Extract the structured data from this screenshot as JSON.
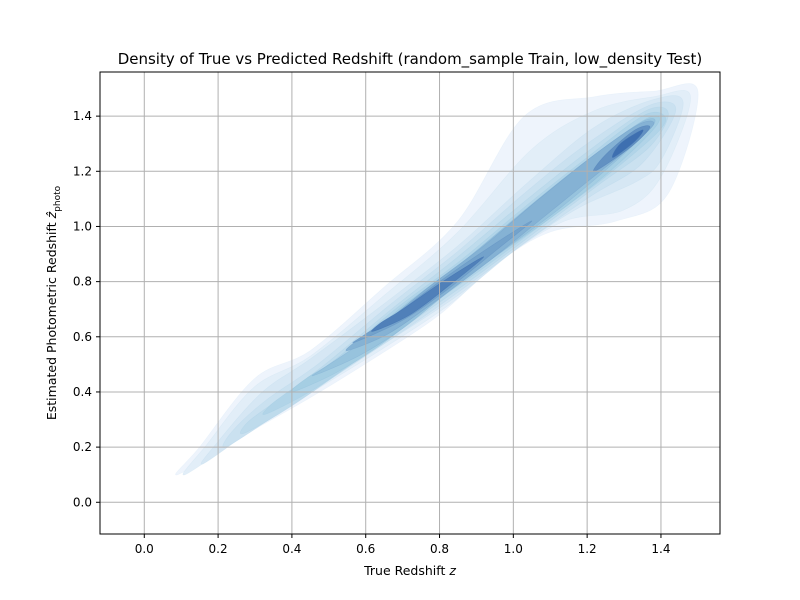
{
  "chart_data": {
    "type": "kde_density_contour",
    "title": "Density of True vs Predicted Redshift (random_sample Train, low_density Test)",
    "xlabel": {
      "text": "True Redshift ",
      "math": "z"
    },
    "ylabel": {
      "text": "Estimated Photometric Redshift ",
      "math": "ẑ",
      "subscript": "photo"
    },
    "xlim": [
      -0.12,
      1.56
    ],
    "ylim": [
      -0.115,
      1.56
    ],
    "x_ticks": [
      0.0,
      0.2,
      0.4,
      0.6,
      0.8,
      1.0,
      1.2,
      1.4
    ],
    "x_tick_labels": [
      "0.0",
      "0.2",
      "0.4",
      "0.6",
      "0.8",
      "1.0",
      "1.2",
      "1.4"
    ],
    "y_ticks": [
      0.0,
      0.2,
      0.4,
      0.6,
      0.8,
      1.0,
      1.2,
      1.4
    ],
    "y_tick_labels": [
      "0.0",
      "0.2",
      "0.4",
      "0.6",
      "0.8",
      "1.0",
      "1.2",
      "1.4"
    ],
    "grid": true,
    "colormap": "Blues",
    "colors": {
      "low": "#eef4fc",
      "mid": "#9ecae1",
      "high": "#3e6fb0"
    },
    "contour_levels": [
      {
        "points": [
          [
            0.09,
            0.1
          ],
          [
            0.28,
            0.25
          ],
          [
            0.45,
            0.38
          ],
          [
            0.62,
            0.52
          ],
          [
            0.8,
            0.68
          ],
          [
            0.95,
            0.86
          ],
          [
            1.1,
            0.98
          ],
          [
            1.28,
            1.02
          ],
          [
            1.42,
            1.12
          ],
          [
            1.5,
            1.49
          ],
          [
            1.38,
            1.49
          ],
          [
            1.22,
            1.47
          ],
          [
            1.03,
            1.4
          ],
          [
            0.85,
            1.02
          ],
          [
            0.65,
            0.78
          ],
          [
            0.45,
            0.55
          ],
          [
            0.3,
            0.45
          ],
          [
            0.15,
            0.2
          ]
        ]
      },
      {
        "points": [
          [
            0.11,
            0.1
          ],
          [
            0.3,
            0.27
          ],
          [
            0.48,
            0.42
          ],
          [
            0.65,
            0.56
          ],
          [
            0.83,
            0.72
          ],
          [
            0.98,
            0.89
          ],
          [
            1.14,
            1.02
          ],
          [
            1.3,
            1.06
          ],
          [
            1.4,
            1.18
          ],
          [
            1.48,
            1.47
          ],
          [
            1.38,
            1.47
          ],
          [
            1.22,
            1.42
          ],
          [
            1.05,
            1.28
          ],
          [
            0.85,
            0.98
          ],
          [
            0.65,
            0.75
          ],
          [
            0.45,
            0.53
          ],
          [
            0.3,
            0.42
          ],
          [
            0.17,
            0.21
          ]
        ]
      },
      {
        "points": [
          [
            0.16,
            0.14
          ],
          [
            0.32,
            0.29
          ],
          [
            0.5,
            0.45
          ],
          [
            0.68,
            0.6
          ],
          [
            0.86,
            0.76
          ],
          [
            1.02,
            0.93
          ],
          [
            1.18,
            1.07
          ],
          [
            1.33,
            1.16
          ],
          [
            1.4,
            1.24
          ],
          [
            1.46,
            1.45
          ],
          [
            1.38,
            1.46
          ],
          [
            1.22,
            1.36
          ],
          [
            1.04,
            1.16
          ],
          [
            0.85,
            0.93
          ],
          [
            0.65,
            0.72
          ],
          [
            0.45,
            0.52
          ],
          [
            0.32,
            0.4
          ],
          [
            0.2,
            0.22
          ]
        ]
      },
      {
        "points": [
          [
            0.22,
            0.2
          ],
          [
            0.35,
            0.31
          ],
          [
            0.52,
            0.46
          ],
          [
            0.7,
            0.62
          ],
          [
            0.88,
            0.79
          ],
          [
            1.05,
            0.96
          ],
          [
            1.21,
            1.11
          ],
          [
            1.35,
            1.23
          ],
          [
            1.44,
            1.42
          ],
          [
            1.37,
            1.44
          ],
          [
            1.2,
            1.3
          ],
          [
            1.03,
            1.12
          ],
          [
            0.85,
            0.91
          ],
          [
            0.66,
            0.71
          ],
          [
            0.47,
            0.5
          ],
          [
            0.33,
            0.37
          ],
          [
            0.24,
            0.26
          ]
        ]
      },
      {
        "points": [
          [
            0.27,
            0.25
          ],
          [
            0.4,
            0.35
          ],
          [
            0.55,
            0.49
          ],
          [
            0.72,
            0.65
          ],
          [
            0.9,
            0.82
          ],
          [
            1.07,
            0.99
          ],
          [
            1.23,
            1.15
          ],
          [
            1.37,
            1.29
          ],
          [
            1.42,
            1.41
          ],
          [
            1.36,
            1.42
          ],
          [
            1.2,
            1.27
          ],
          [
            1.03,
            1.09
          ],
          [
            0.85,
            0.89
          ],
          [
            0.67,
            0.7
          ],
          [
            0.49,
            0.5
          ],
          [
            0.36,
            0.37
          ],
          [
            0.28,
            0.29
          ]
        ]
      },
      {
        "points": [
          [
            0.33,
            0.32
          ],
          [
            0.46,
            0.41
          ],
          [
            0.6,
            0.54
          ],
          [
            0.76,
            0.7
          ],
          [
            0.93,
            0.86
          ],
          [
            1.09,
            1.02
          ],
          [
            1.25,
            1.18
          ],
          [
            1.39,
            1.34
          ],
          [
            1.41,
            1.4
          ],
          [
            1.35,
            1.4
          ],
          [
            1.19,
            1.24
          ],
          [
            1.03,
            1.07
          ],
          [
            0.86,
            0.88
          ],
          [
            0.68,
            0.7
          ],
          [
            0.52,
            0.52
          ],
          [
            0.4,
            0.41
          ],
          [
            0.34,
            0.35
          ]
        ]
      },
      {
        "points": [
          [
            0.4,
            0.4
          ],
          [
            0.52,
            0.47
          ],
          [
            0.65,
            0.58
          ],
          [
            0.8,
            0.74
          ],
          [
            0.95,
            0.89
          ],
          [
            1.11,
            1.04
          ],
          [
            1.27,
            1.21
          ],
          [
            1.39,
            1.37
          ],
          [
            1.36,
            1.39
          ],
          [
            1.2,
            1.24
          ],
          [
            1.04,
            1.07
          ],
          [
            0.87,
            0.88
          ],
          [
            0.7,
            0.71
          ],
          [
            0.56,
            0.55
          ],
          [
            0.44,
            0.45
          ]
        ]
      },
      {
        "points": [
          [
            0.46,
            0.46
          ],
          [
            0.58,
            0.53
          ],
          [
            0.7,
            0.63
          ],
          [
            0.84,
            0.78
          ],
          [
            0.99,
            0.93
          ],
          [
            1.13,
            1.07
          ],
          [
            1.28,
            1.24
          ],
          [
            1.38,
            1.37
          ],
          [
            1.35,
            1.38
          ],
          [
            1.22,
            1.26
          ],
          [
            1.06,
            1.09
          ],
          [
            0.89,
            0.9
          ],
          [
            0.73,
            0.73
          ],
          [
            0.6,
            0.59
          ],
          [
            0.49,
            0.49
          ]
        ]
      },
      {
        "points": [
          [
            0.55,
            0.55
          ],
          [
            0.66,
            0.61
          ],
          [
            0.78,
            0.72
          ],
          [
            0.93,
            0.87
          ],
          [
            1.06,
            1.01
          ],
          [
            1.18,
            1.14
          ],
          [
            1.31,
            1.28
          ],
          [
            1.38,
            1.37
          ],
          [
            1.34,
            1.37
          ],
          [
            1.22,
            1.26
          ],
          [
            1.07,
            1.1
          ],
          [
            0.92,
            0.93
          ],
          [
            0.77,
            0.78
          ],
          [
            0.65,
            0.65
          ],
          [
            0.58,
            0.59
          ]
        ]
      },
      {
        "points": [
          [
            0.57,
            0.58
          ],
          [
            0.7,
            0.66
          ],
          [
            0.82,
            0.77
          ],
          [
            0.95,
            0.91
          ],
          [
            1.05,
            1.02
          ],
          [
            0.93,
            0.92
          ],
          [
            0.8,
            0.8
          ],
          [
            0.68,
            0.68
          ],
          [
            0.6,
            0.61
          ]
        ]
      },
      {
        "points": [
          [
            1.22,
            1.2
          ],
          [
            1.32,
            1.29
          ],
          [
            1.37,
            1.36
          ],
          [
            1.33,
            1.35
          ],
          [
            1.25,
            1.26
          ]
        ]
      },
      {
        "points": [
          [
            0.62,
            0.62
          ],
          [
            0.72,
            0.68
          ],
          [
            0.83,
            0.79
          ],
          [
            0.92,
            0.89
          ],
          [
            0.82,
            0.81
          ],
          [
            0.7,
            0.7
          ],
          [
            0.64,
            0.65
          ]
        ]
      },
      {
        "points": [
          [
            1.27,
            1.25
          ],
          [
            1.33,
            1.31
          ],
          [
            1.35,
            1.35
          ],
          [
            1.29,
            1.3
          ]
        ]
      }
    ]
  }
}
